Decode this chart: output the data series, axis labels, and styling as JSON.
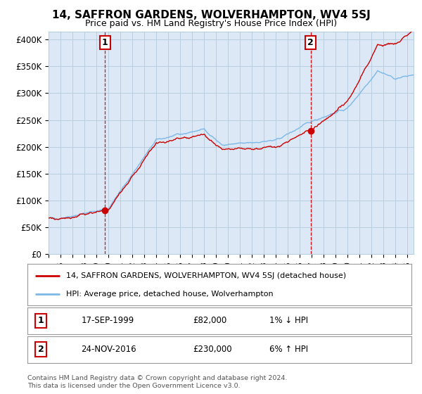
{
  "title": "14, SAFFRON GARDENS, WOLVERHAMPTON, WV4 5SJ",
  "subtitle": "Price paid vs. HM Land Registry's House Price Index (HPI)",
  "ylabel_ticks": [
    "£0",
    "£50K",
    "£100K",
    "£150K",
    "£200K",
    "£250K",
    "£300K",
    "£350K",
    "£400K"
  ],
  "ytick_vals": [
    0,
    50000,
    100000,
    150000,
    200000,
    250000,
    300000,
    350000,
    400000
  ],
  "ylim": [
    0,
    415000
  ],
  "xlim_start": 1995.0,
  "xlim_end": 2025.5,
  "sale1_year": 1999.72,
  "sale1_price": 82000,
  "sale2_year": 2016.9,
  "sale2_price": 230000,
  "hpi_color": "#7cb8e8",
  "price_color": "#cc0000",
  "plot_bg_color": "#dce8f5",
  "background_color": "#ffffff",
  "grid_color": "#b8cfe0",
  "legend_entry1": "14, SAFFRON GARDENS, WOLVERHAMPTON, WV4 5SJ (detached house)",
  "legend_entry2": "HPI: Average price, detached house, Wolverhampton",
  "table_row1_num": "1",
  "table_row1_date": "17-SEP-1999",
  "table_row1_price": "£82,000",
  "table_row1_hpi": "1% ↓ HPI",
  "table_row2_num": "2",
  "table_row2_date": "24-NOV-2016",
  "table_row2_price": "£230,000",
  "table_row2_hpi": "6% ↑ HPI",
  "footer": "Contains HM Land Registry data © Crown copyright and database right 2024.\nThis data is licensed under the Open Government Licence v3.0."
}
